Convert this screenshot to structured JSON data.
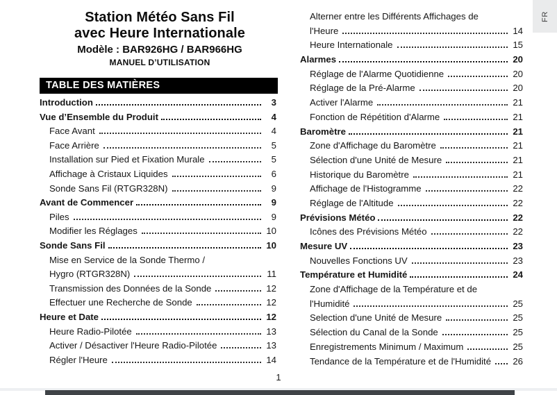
{
  "fr_tab": "FR",
  "header": {
    "title_line1": "Station Météo Sans Fil",
    "title_line2": "avec Heure Internationale",
    "model": "Modèle : BAR926HG / BAR966HG",
    "manual": "MANUEL D’UTILISATION"
  },
  "toc": {
    "heading": "TABLE DES MATIÈRES",
    "left": [
      {
        "label": "Introduction",
        "page": "3",
        "bold": true
      },
      {
        "label": "Vue d’Ensemble du Produit",
        "page": "4",
        "bold": true
      },
      {
        "label": "Face Avant",
        "page": "4",
        "indent": true
      },
      {
        "label": "Face Arrière",
        "page": "5",
        "indent": true
      },
      {
        "label": "Installation sur Pied et Fixation Murale",
        "page": "5",
        "indent": true
      },
      {
        "label": "Affichage à Cristaux Liquides",
        "page": "6",
        "indent": true
      },
      {
        "label": "Sonde Sans Fil (RTGR328N)",
        "page": "9",
        "indent": true
      },
      {
        "label": "Avant de Commencer",
        "page": "9",
        "bold": true
      },
      {
        "label": "Piles",
        "page": "9",
        "indent": true
      },
      {
        "label": "Modifier les Réglages",
        "page": "10",
        "indent": true
      },
      {
        "label": "Sonde Sans Fil",
        "page": "10",
        "bold": true
      },
      {
        "label": "Mise en Service de la Sonde Thermo /",
        "page": "",
        "indent": true,
        "leader": false
      },
      {
        "label": "Hygro (RTGR328N)",
        "page": "11",
        "indent": true
      },
      {
        "label": "Transmission des Données de la Sonde",
        "page": "12",
        "indent": true
      },
      {
        "label": "Effectuer une Recherche de Sonde",
        "page": "12",
        "indent": true
      },
      {
        "label": "Heure et Date",
        "page": "12",
        "bold": true
      },
      {
        "label": "Heure Radio-Pilotée",
        "page": "13",
        "indent": true
      },
      {
        "label": "Activer / Désactiver l'Heure Radio-Pilotée",
        "page": "13",
        "indent": true
      },
      {
        "label": "Régler l'Heure",
        "page": "14",
        "indent": true
      }
    ],
    "right": [
      {
        "label": "Alterner entre les Différents Affichages de",
        "page": "",
        "indent": true,
        "leader": false
      },
      {
        "label": "l'Heure",
        "page": "14",
        "indent": true
      },
      {
        "label": "Heure Internationale",
        "page": "15",
        "indent": true
      },
      {
        "label": "Alarmes",
        "page": "20",
        "bold": true
      },
      {
        "label": "Réglage de l'Alarme Quotidienne",
        "page": "20",
        "indent": true
      },
      {
        "label": "Réglage de la Pré-Alarme",
        "page": "20",
        "indent": true
      },
      {
        "label": "Activer l'Alarme",
        "page": "21",
        "indent": true
      },
      {
        "label": "Fonction de Répétition d'Alarme",
        "page": "21",
        "indent": true
      },
      {
        "label": "Baromètre",
        "page": "21",
        "bold": true
      },
      {
        "label": "Zone d'Affichage du Baromètre",
        "page": "21",
        "indent": true
      },
      {
        "label": "Sélection d'une Unité de Mesure",
        "page": "21",
        "indent": true
      },
      {
        "label": "Historique du Baromètre",
        "page": "21",
        "indent": true
      },
      {
        "label": "Affichage de l'Histogramme",
        "page": "22",
        "indent": true
      },
      {
        "label": "Réglage de l'Altitude",
        "page": "22",
        "indent": true
      },
      {
        "label": "Prévisions Météo",
        "page": "22",
        "bold": true
      },
      {
        "label": "Icônes des Prévisions Météo",
        "page": "22",
        "indent": true
      },
      {
        "label": "Mesure UV",
        "page": "23",
        "bold": true
      },
      {
        "label": "Nouvelles Fonctions UV",
        "page": "23",
        "indent": true
      },
      {
        "label": "Température et Humidité",
        "page": "24",
        "bold": true
      },
      {
        "label": "Zone d'Affichage de la Température et de",
        "page": "",
        "indent": true,
        "leader": false
      },
      {
        "label": "l'Humidité",
        "page": "25",
        "indent": true
      },
      {
        "label": "Selection d'une Unité de Mesure",
        "page": "25",
        "indent": true
      },
      {
        "label": "Sélection du Canal de la Sonde",
        "page": "25",
        "indent": true
      },
      {
        "label": "Enregistrements Minimum / Maximum",
        "page": "25",
        "indent": true
      },
      {
        "label": "Tendance de la Température et de l'Humidité",
        "page": "26",
        "indent": true
      }
    ]
  },
  "page_number": "1",
  "colors": {
    "bar_bg": "#000000",
    "bar_text": "#ffffff",
    "tab_bg": "#eaebec",
    "bottom_bar": "#3f4347"
  }
}
